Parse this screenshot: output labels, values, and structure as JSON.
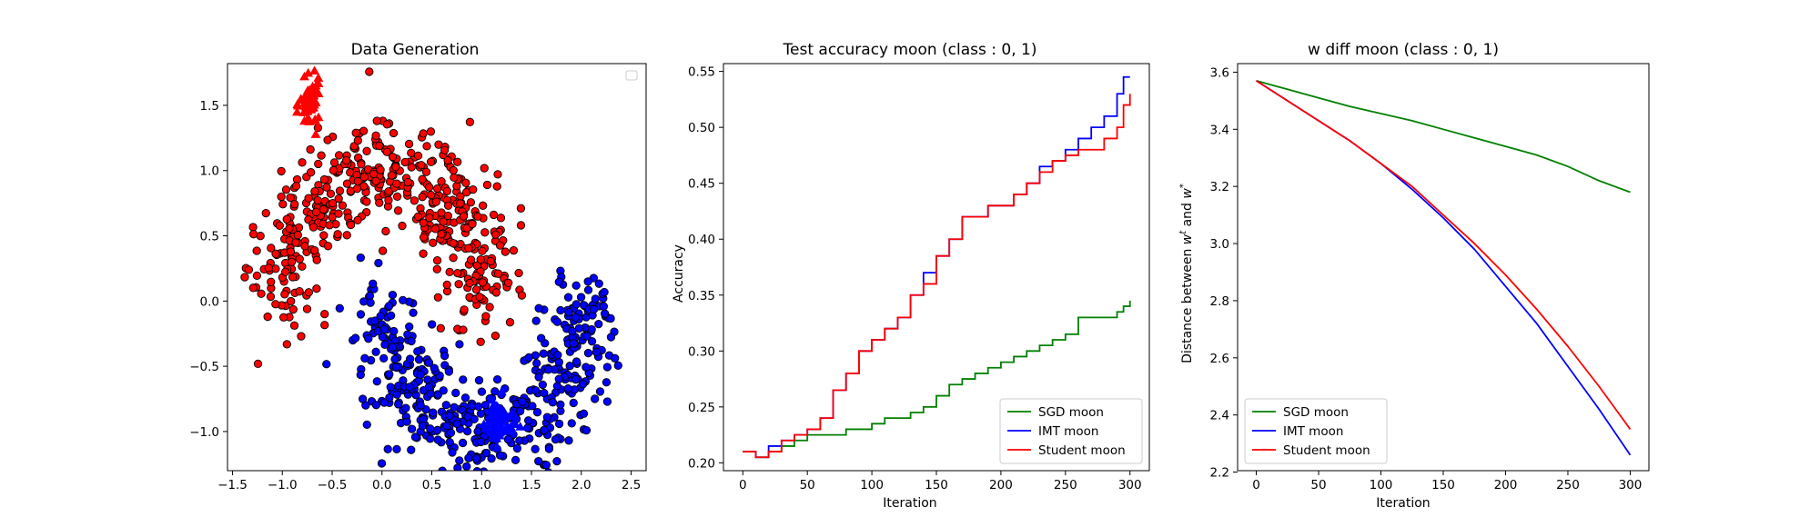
{
  "chart_data": [
    {
      "type": "scatter",
      "title": "Data Generation",
      "xlabel": "",
      "ylabel": "",
      "xlim": [
        -1.55,
        2.65
      ],
      "ylim": [
        -1.3,
        1.82
      ],
      "xticks": [
        -1.5,
        -1.0,
        -0.5,
        0.0,
        0.5,
        1.0,
        1.5,
        2.0,
        2.5
      ],
      "xtick_labels": [
        "−1.5",
        "−1.0",
        "−0.5",
        "0.0",
        "0.5",
        "1.0",
        "1.5",
        "2.0",
        "2.5"
      ],
      "yticks": [
        -1.0,
        -0.5,
        0.0,
        0.5,
        1.0,
        1.5
      ],
      "ytick_labels": [
        "−1.0",
        "−0.5",
        "0.0",
        "0.5",
        "1.0",
        "1.5"
      ],
      "legend": "empty-top-right",
      "series": [
        {
          "marker": "circle",
          "color": "#ff0000",
          "shape": "upper-moon",
          "center": [
            0.0,
            0.0
          ],
          "radius": 1.0,
          "noise": 0.2,
          "count": 500
        },
        {
          "marker": "circle",
          "color": "#0000ff",
          "shape": "lower-moon",
          "center": [
            1.0,
            0.5
          ],
          "radius": 1.0,
          "noise": 0.2,
          "count": 500
        },
        {
          "marker": "triangle",
          "color": "#ff0000",
          "cluster_center": [
            -0.72,
            1.5
          ],
          "spread": [
            0.05,
            0.09
          ],
          "count": 60
        },
        {
          "marker": "triangle",
          "color": "#0000ff",
          "cluster_center": [
            1.18,
            -0.93
          ],
          "spread": [
            0.07,
            0.09
          ],
          "count": 60
        }
      ]
    },
    {
      "type": "line",
      "title": "Test accuracy moon (class : 0, 1)",
      "xlabel": "Iteration",
      "ylabel": "Accuracy",
      "xlim": [
        -15,
        315
      ],
      "ylim": [
        0.193,
        0.557
      ],
      "xticks": [
        0,
        50,
        100,
        150,
        200,
        250,
        300
      ],
      "xtick_labels": [
        "0",
        "50",
        "100",
        "150",
        "200",
        "250",
        "300"
      ],
      "yticks": [
        0.2,
        0.25,
        0.3,
        0.35,
        0.4,
        0.45,
        0.5,
        0.55
      ],
      "ytick_labels": [
        "0.20",
        "0.25",
        "0.30",
        "0.35",
        "0.40",
        "0.45",
        "0.50",
        "0.55"
      ],
      "legend": "lower-right",
      "series": [
        {
          "name": "SGD moon",
          "color": "#008000",
          "x": [
            0,
            10,
            20,
            30,
            40,
            50,
            60,
            70,
            80,
            90,
            100,
            110,
            120,
            130,
            140,
            150,
            160,
            170,
            180,
            190,
            200,
            210,
            220,
            230,
            240,
            250,
            260,
            270,
            280,
            290,
            295,
            300
          ],
          "y": [
            0.21,
            0.205,
            0.21,
            0.215,
            0.22,
            0.225,
            0.225,
            0.225,
            0.23,
            0.23,
            0.235,
            0.24,
            0.24,
            0.245,
            0.25,
            0.26,
            0.27,
            0.275,
            0.28,
            0.285,
            0.29,
            0.295,
            0.3,
            0.305,
            0.31,
            0.315,
            0.33,
            0.33,
            0.33,
            0.335,
            0.34,
            0.345
          ]
        },
        {
          "name": "IMT moon",
          "color": "#0000ff",
          "x": [
            0,
            10,
            20,
            30,
            40,
            50,
            60,
            70,
            80,
            90,
            100,
            110,
            120,
            130,
            140,
            150,
            160,
            170,
            180,
            190,
            200,
            210,
            220,
            230,
            240,
            250,
            260,
            270,
            280,
            290,
            295,
            300
          ],
          "y": [
            0.21,
            0.205,
            0.215,
            0.22,
            0.225,
            0.23,
            0.24,
            0.265,
            0.28,
            0.3,
            0.31,
            0.32,
            0.33,
            0.35,
            0.37,
            0.385,
            0.4,
            0.42,
            0.42,
            0.43,
            0.43,
            0.44,
            0.45,
            0.465,
            0.47,
            0.48,
            0.49,
            0.5,
            0.51,
            0.53,
            0.545,
            0.545
          ]
        },
        {
          "name": "Student moon",
          "color": "#ff0000",
          "x": [
            0,
            10,
            20,
            30,
            40,
            50,
            60,
            70,
            80,
            90,
            100,
            110,
            120,
            130,
            140,
            150,
            160,
            170,
            180,
            190,
            200,
            210,
            220,
            230,
            240,
            250,
            260,
            270,
            280,
            290,
            295,
            300
          ],
          "y": [
            0.21,
            0.205,
            0.21,
            0.22,
            0.225,
            0.23,
            0.24,
            0.265,
            0.28,
            0.3,
            0.31,
            0.32,
            0.33,
            0.35,
            0.36,
            0.385,
            0.4,
            0.42,
            0.42,
            0.43,
            0.43,
            0.44,
            0.45,
            0.46,
            0.47,
            0.475,
            0.48,
            0.48,
            0.49,
            0.5,
            0.52,
            0.53
          ]
        }
      ]
    },
    {
      "type": "line",
      "title": "w diff moon (class : 0, 1)",
      "xlabel": "Iteration",
      "ylabel_prefix": "Distance between ",
      "ylabel_w1": "w",
      "ylabel_sup1": "t",
      "ylabel_mid": " and ",
      "ylabel_w2": "w",
      "ylabel_sup2": "*",
      "xlim": [
        -15,
        315
      ],
      "ylim": [
        2.205,
        3.63
      ],
      "xticks": [
        0,
        50,
        100,
        150,
        200,
        250,
        300
      ],
      "xtick_labels": [
        "0",
        "50",
        "100",
        "150",
        "200",
        "250",
        "300"
      ],
      "yticks": [
        2.2,
        2.4,
        2.6,
        2.8,
        3.0,
        3.2,
        3.4,
        3.6
      ],
      "ytick_labels": [
        "2.2",
        "2.4",
        "2.6",
        "2.8",
        "3.0",
        "3.2",
        "3.4",
        "3.6"
      ],
      "legend": "lower-left",
      "series": [
        {
          "name": "SGD moon",
          "color": "#008000",
          "x": [
            0,
            25,
            50,
            75,
            100,
            125,
            150,
            175,
            200,
            225,
            250,
            275,
            300
          ],
          "y": [
            3.57,
            3.54,
            3.51,
            3.48,
            3.455,
            3.43,
            3.4,
            3.37,
            3.34,
            3.31,
            3.27,
            3.22,
            3.18
          ]
        },
        {
          "name": "IMT moon",
          "color": "#0000ff",
          "x": [
            0,
            25,
            50,
            75,
            100,
            125,
            150,
            175,
            200,
            225,
            250,
            275,
            300
          ],
          "y": [
            3.57,
            3.5,
            3.43,
            3.36,
            3.28,
            3.19,
            3.09,
            2.98,
            2.85,
            2.72,
            2.57,
            2.42,
            2.26
          ]
        },
        {
          "name": "Student moon",
          "color": "#ff0000",
          "x": [
            0,
            25,
            50,
            75,
            100,
            125,
            150,
            175,
            200,
            225,
            250,
            275,
            300
          ],
          "y": [
            3.57,
            3.5,
            3.43,
            3.36,
            3.28,
            3.2,
            3.1,
            3.0,
            2.89,
            2.77,
            2.64,
            2.5,
            2.35
          ]
        }
      ]
    }
  ]
}
